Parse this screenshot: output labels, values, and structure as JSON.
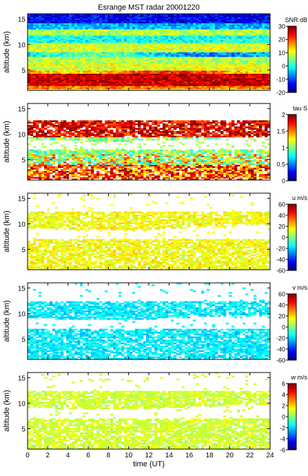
{
  "chart_data": [
    {
      "type": "heatmap",
      "title": "Esrange MST radar 20001220",
      "ylabel": "altitude (km)",
      "ylim": [
        1,
        16
      ],
      "yticks": [
        5,
        10,
        15
      ],
      "xlim": [
        0,
        24
      ],
      "colorbar": {
        "label": "SNR dB",
        "range": [
          -20,
          30
        ],
        "ticks": [
          30,
          20,
          10,
          0,
          -10,
          -20
        ]
      },
      "description_features": {
        "strong_layer_km": [
          2,
          4
        ],
        "medium_bands_km": [
          5,
          7,
          8,
          10,
          12
        ],
        "weak_top_km": [
          14,
          16
        ]
      }
    },
    {
      "type": "heatmap",
      "ylabel": "altitude (km)",
      "ylim": [
        1,
        16
      ],
      "yticks": [
        5,
        10,
        15
      ],
      "xlim": [
        0,
        24
      ],
      "colorbar": {
        "label": "tau S",
        "range": [
          0,
          2
        ],
        "ticks": [
          2,
          1.5,
          1,
          0.5,
          0
        ]
      },
      "data_gap_km": [
        7,
        9
      ]
    },
    {
      "type": "heatmap",
      "ylabel": "altitude (km)",
      "ylim": [
        1,
        16
      ],
      "yticks": [
        5,
        10,
        15
      ],
      "xlim": [
        0,
        24
      ],
      "colorbar": {
        "label": "u m/s",
        "range": [
          -60,
          60
        ],
        "ticks": [
          60,
          40,
          20,
          0,
          -20,
          -40,
          -60
        ]
      },
      "data_gap_km": [
        7,
        9
      ]
    },
    {
      "type": "heatmap",
      "ylabel": "altitude (km)",
      "ylim": [
        1,
        16
      ],
      "yticks": [
        5,
        10,
        15
      ],
      "xlim": [
        0,
        24
      ],
      "colorbar": {
        "label": "v m/s",
        "range": [
          -60,
          60
        ],
        "ticks": [
          60,
          40,
          20,
          0,
          -20,
          -40,
          -60
        ]
      },
      "data_gap_km": [
        7,
        9
      ]
    },
    {
      "type": "heatmap",
      "ylabel": "altitude (km)",
      "ylim": [
        1,
        16
      ],
      "yticks": [
        5,
        10,
        15
      ],
      "xlim": [
        0,
        24
      ],
      "xlabel": "time (UT)",
      "xticks": [
        0,
        2,
        4,
        6,
        8,
        10,
        12,
        14,
        16,
        18,
        20,
        22,
        24
      ],
      "colorbar": {
        "label": "w m/s",
        "range": [
          -6,
          6
        ],
        "ticks": [
          6,
          4,
          2,
          0,
          -2,
          -4,
          -6
        ]
      },
      "data_gap_km": [
        7,
        9
      ]
    }
  ]
}
